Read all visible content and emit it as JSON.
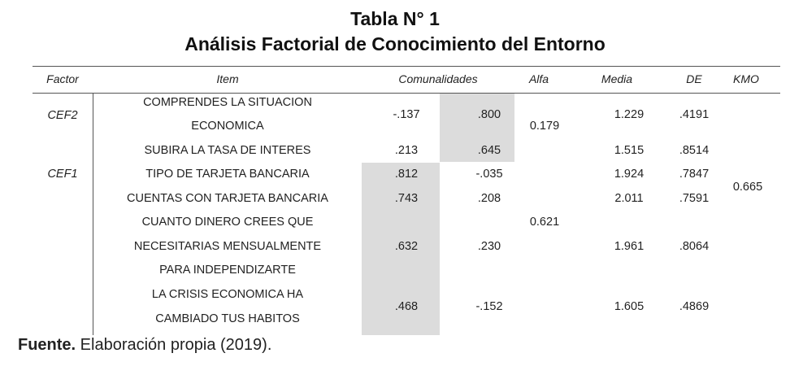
{
  "title": {
    "line1": "Tabla N° 1",
    "line2": "Análisis Factorial de Conocimiento del Entorno"
  },
  "headers": {
    "factor": "Factor",
    "item": "Item",
    "comunalidades": "Comunalidades",
    "alfa": "Alfa",
    "media": "Media",
    "de": "DE",
    "kmo": "KMO"
  },
  "groups": [
    {
      "factor": "CEF2",
      "alfa": "0.179"
    },
    {
      "factor": "CEF1",
      "alfa": "0.621"
    }
  ],
  "kmo": "0.665",
  "rows": [
    {
      "item_lines": [
        "COMPRENDES LA SITUACION",
        "ECONOMICA"
      ],
      "c1": "-.137",
      "c2": ".800",
      "media": "1.229",
      "de": ".4191"
    },
    {
      "item_lines": [
        "SUBIRA LA TASA DE INTERES"
      ],
      "c1": ".213",
      "c2": ".645",
      "media": "1.515",
      "de": ".8514"
    },
    {
      "item_lines": [
        "TIPO DE TARJETA BANCARIA"
      ],
      "c1": ".812",
      "c2": "-.035",
      "media": "1.924",
      "de": ".7847"
    },
    {
      "item_lines": [
        "CUENTAS CON TARJETA BANCARIA"
      ],
      "c1": ".743",
      "c2": ".208",
      "media": "2.011",
      "de": ".7591"
    },
    {
      "item_lines": [
        "CUANTO DINERO CREES QUE",
        "NECESITARIAS MENSUALMENTE",
        "PARA INDEPENDIZARTE"
      ],
      "c1": ".632",
      "c2": ".230",
      "media": "1.961",
      "de": ".8064"
    },
    {
      "item_lines": [
        "LA CRISIS ECONOMICA HA",
        "CAMBIADO TUS HABITOS"
      ],
      "c1": ".468",
      "c2": "-.152",
      "media": "1.605",
      "de": ".4869"
    }
  ],
  "footer": {
    "bold": "Fuente.",
    "text": " Elaboración propia (2019)."
  }
}
